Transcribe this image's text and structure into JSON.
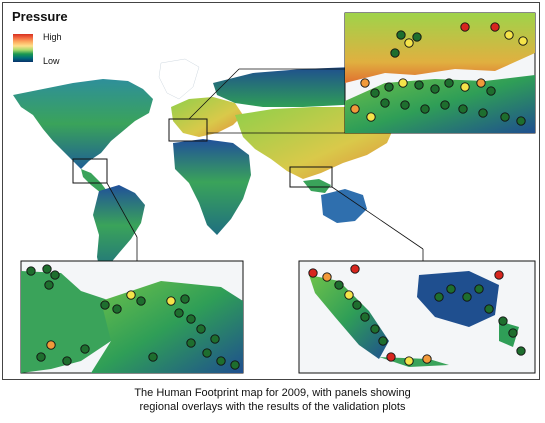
{
  "legend": {
    "title": "Pressure",
    "high_label": "High",
    "low_label": "Low",
    "gradient": [
      "#d7301f",
      "#f46d43",
      "#fdae61",
      "#fee08b",
      "#a6d96a",
      "#1a9850",
      "#006d7a",
      "#08306b"
    ]
  },
  "caption": {
    "line1": "The Human Footprint map for 2009, with panels showing",
    "line2": "regional overlays with the results of the validation plots"
  },
  "colors": {
    "ocean": "#ffffff",
    "low_pressure": "#1f4f8f",
    "mid_pressure": "#2f9e57",
    "high_pressure": "#d94a2a",
    "point_green": "#1e6e2e",
    "point_yellow": "#f5e44a",
    "point_orange": "#f29a3a",
    "point_red": "#d7261e"
  },
  "panels": [
    {
      "name": "mediterranean-inset"
    },
    {
      "name": "central-america-inset"
    },
    {
      "name": "southeast-asia-inset"
    }
  ]
}
